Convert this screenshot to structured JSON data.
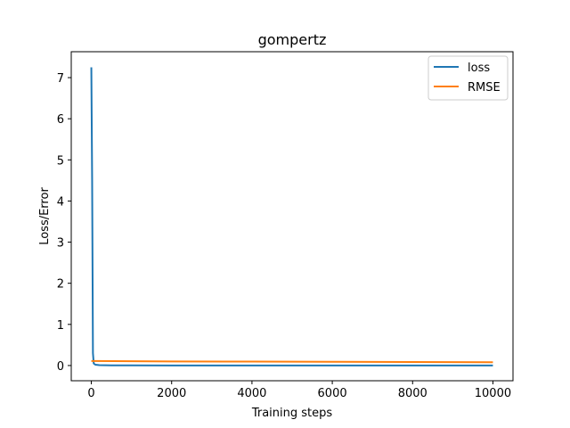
{
  "chart_data": {
    "type": "line",
    "title": "gompertz",
    "xlabel": "Training steps",
    "ylabel": "Loss/Error",
    "xlim": [
      -500,
      10500
    ],
    "ylim": [
      -0.37,
      7.63
    ],
    "xticks": [
      0,
      2000,
      4000,
      6000,
      8000,
      10000
    ],
    "yticks": [
      0,
      1,
      2,
      3,
      4,
      5,
      6,
      7
    ],
    "grid": false,
    "legend": "top-right",
    "series": [
      {
        "name": "loss",
        "color": "#1f77b4",
        "x": [
          0,
          20,
          40,
          60,
          100,
          200,
          500,
          1000,
          2000,
          5000,
          8000,
          10000
        ],
        "y": [
          7.25,
          4.5,
          0.3,
          0.05,
          0.02,
          0.01,
          0.005,
          0.003,
          0.002,
          0.002,
          0.002,
          0.001
        ]
      },
      {
        "name": "RMSE",
        "color": "#ff7f0e",
        "x": [
          0,
          100,
          1000,
          2000,
          4000,
          6000,
          8000,
          10000
        ],
        "y": [
          0.11,
          0.11,
          0.105,
          0.1,
          0.095,
          0.09,
          0.085,
          0.08
        ]
      }
    ]
  }
}
